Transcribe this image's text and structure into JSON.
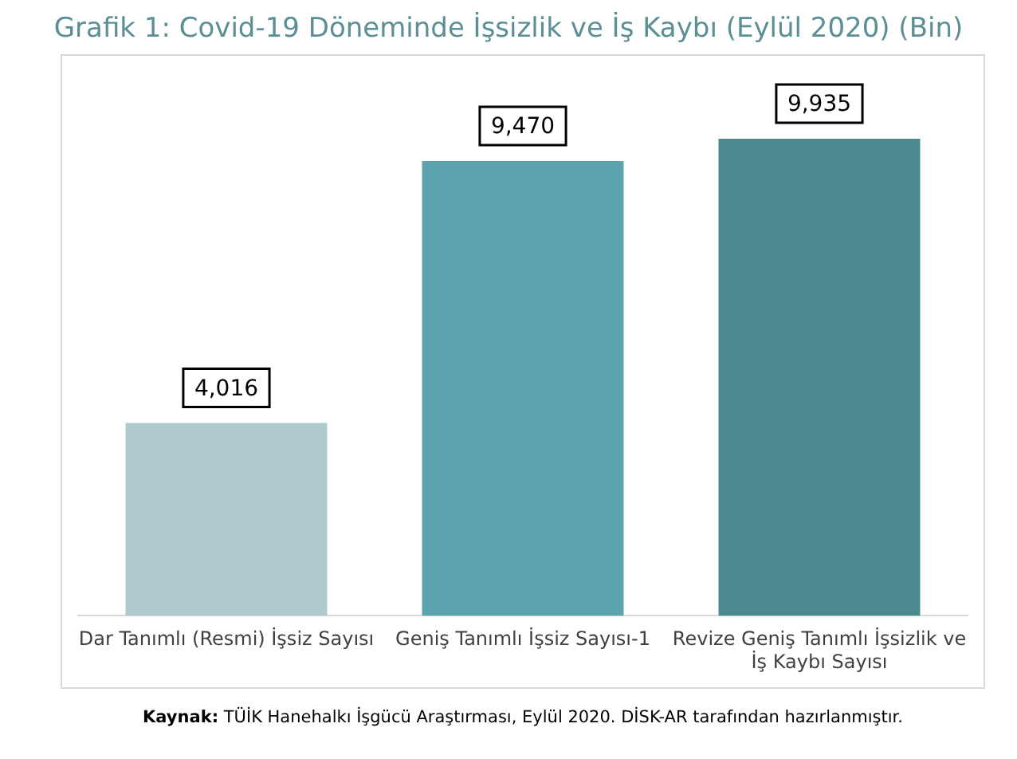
{
  "chart_data": {
    "type": "bar",
    "title": "Grafik 1: Covid-19 Döneminde İşsizlik ve İş Kaybı (Eylül 2020) (Bin)",
    "categories": [
      "Dar Tanımlı (Resmi) İşsiz Sayısı",
      "Geniş Tanımlı İşsiz Sayısı-1",
      "Revize Geniş Tanımlı İşsizlik ve İş Kaybı Sayısı"
    ],
    "values": [
      4016,
      9470,
      9935
    ],
    "value_labels": [
      "4,016",
      "9,470",
      "9,935"
    ],
    "colors": [
      "#b0c9cf",
      "#5ba3ae",
      "#4a8a8e"
    ],
    "grid": false,
    "legend": false,
    "annotations": [
      "Kaynak: TÜİK Hanehalkı İşgücü Araştırması, Eylül 2020. DİSK-AR tarafından hazırlanmıştır."
    ]
  }
}
